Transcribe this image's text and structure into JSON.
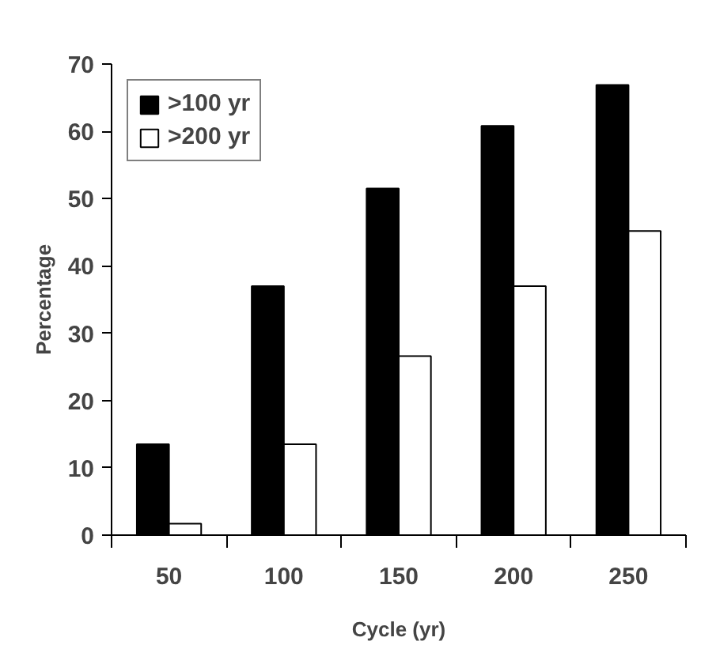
{
  "chart_data": {
    "type": "bar",
    "xlabel": "Cycle (yr)",
    "ylabel": "Percentage",
    "categories": [
      "50",
      "100",
      "150",
      "200",
      "250"
    ],
    "series": [
      {
        "name": ">100 yr",
        "color": "#000000",
        "values": [
          13.5,
          37.0,
          51.5,
          60.8,
          66.9
        ]
      },
      {
        "name": ">200 yr",
        "color": "#ffffff",
        "values": [
          1.7,
          13.5,
          26.6,
          37.0,
          45.2
        ]
      }
    ],
    "ylim": [
      0,
      70
    ],
    "yticks": [
      0,
      10,
      20,
      30,
      40,
      50,
      60,
      70
    ],
    "grid": false,
    "legend": "top left"
  }
}
